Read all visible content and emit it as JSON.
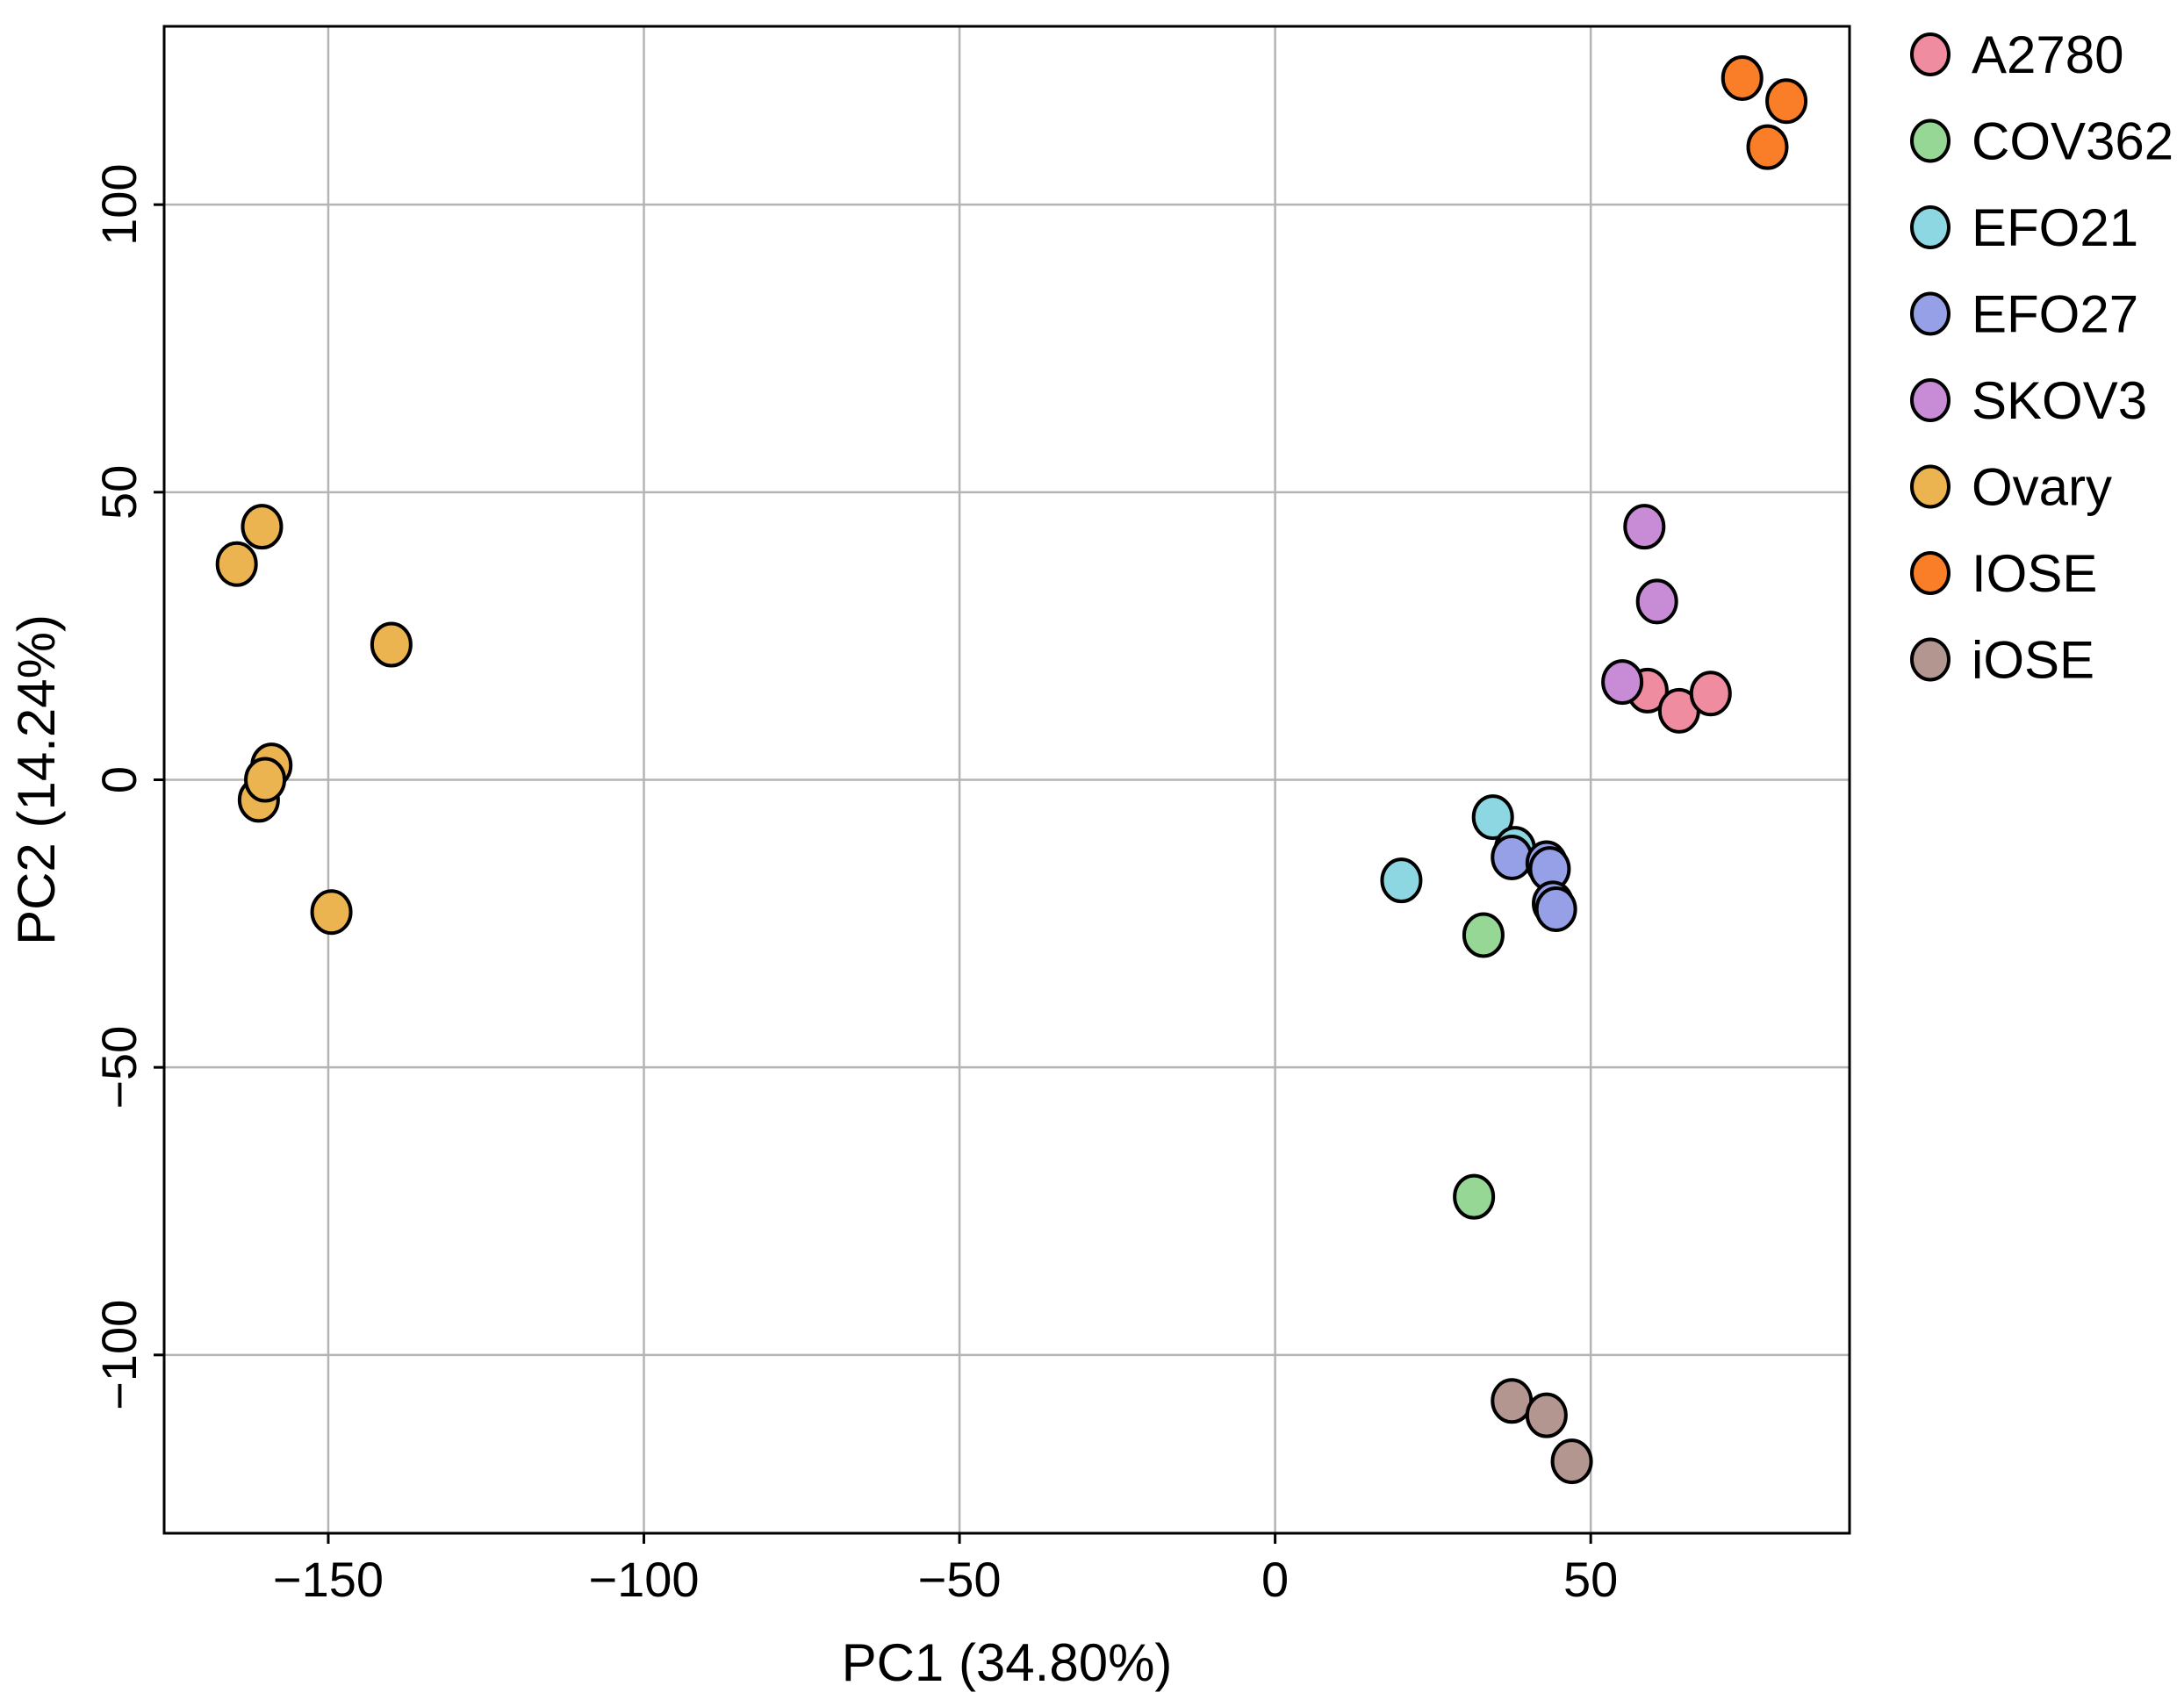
{
  "chart_data": {
    "type": "scatter",
    "title": "",
    "xlabel": "PC1 (34.80%)",
    "ylabel": "PC2 (14.24%)",
    "xlim": [
      -176,
      91
    ],
    "ylim": [
      -131,
      131
    ],
    "xticks": [
      {
        "value": -150,
        "label": "−150"
      },
      {
        "value": -100,
        "label": "−100"
      },
      {
        "value": -50,
        "label": "−50"
      },
      {
        "value": 0,
        "label": "0"
      },
      {
        "value": 50,
        "label": "50"
      }
    ],
    "yticks": [
      {
        "value": -100,
        "label": "−100"
      },
      {
        "value": -50,
        "label": "−50"
      },
      {
        "value": 0,
        "label": "0"
      },
      {
        "value": 50,
        "label": "50"
      },
      {
        "value": 100,
        "label": "100"
      }
    ],
    "grid": true,
    "legend_position": "outside-right",
    "series": [
      {
        "name": "A2780",
        "color": "#f08ca0",
        "points": [
          [
            59,
            15.5
          ],
          [
            64,
            12
          ],
          [
            69,
            15
          ]
        ]
      },
      {
        "name": "COV362",
        "color": "#96d796",
        "points": [
          [
            33,
            -27
          ],
          [
            31.5,
            -72.5
          ]
        ]
      },
      {
        "name": "EFO21",
        "color": "#8cd7e1",
        "points": [
          [
            20,
            -17.5
          ],
          [
            34.5,
            -6.5
          ],
          [
            38,
            -12
          ]
        ]
      },
      {
        "name": "EFO27",
        "color": "#96a0e6",
        "points": [
          [
            37.5,
            -13.5
          ],
          [
            43,
            -14.5
          ],
          [
            43.5,
            -15.5
          ],
          [
            44,
            -21.5
          ],
          [
            44.5,
            -22.5
          ]
        ]
      },
      {
        "name": "SKOV3",
        "color": "#c88cd7",
        "points": [
          [
            58.5,
            44
          ],
          [
            60.5,
            31
          ],
          [
            55,
            17
          ]
        ]
      },
      {
        "name": "Ovary",
        "color": "#ebb450",
        "points": [
          [
            -164.5,
            37.5
          ],
          [
            -160.5,
            44
          ],
          [
            -140,
            23.5
          ],
          [
            -159,
            2.5
          ],
          [
            -161,
            -3.5
          ],
          [
            -160,
            0
          ],
          [
            -149.5,
            -23
          ]
        ]
      },
      {
        "name": "IOSE",
        "color": "#fa7d28",
        "points": [
          [
            74,
            122
          ],
          [
            81,
            118
          ],
          [
            78,
            110
          ]
        ]
      },
      {
        "name": "iOSE",
        "color": "#b49691",
        "points": [
          [
            37.5,
            -108
          ],
          [
            43,
            -110.5
          ],
          [
            47,
            -118.5
          ]
        ]
      }
    ]
  }
}
